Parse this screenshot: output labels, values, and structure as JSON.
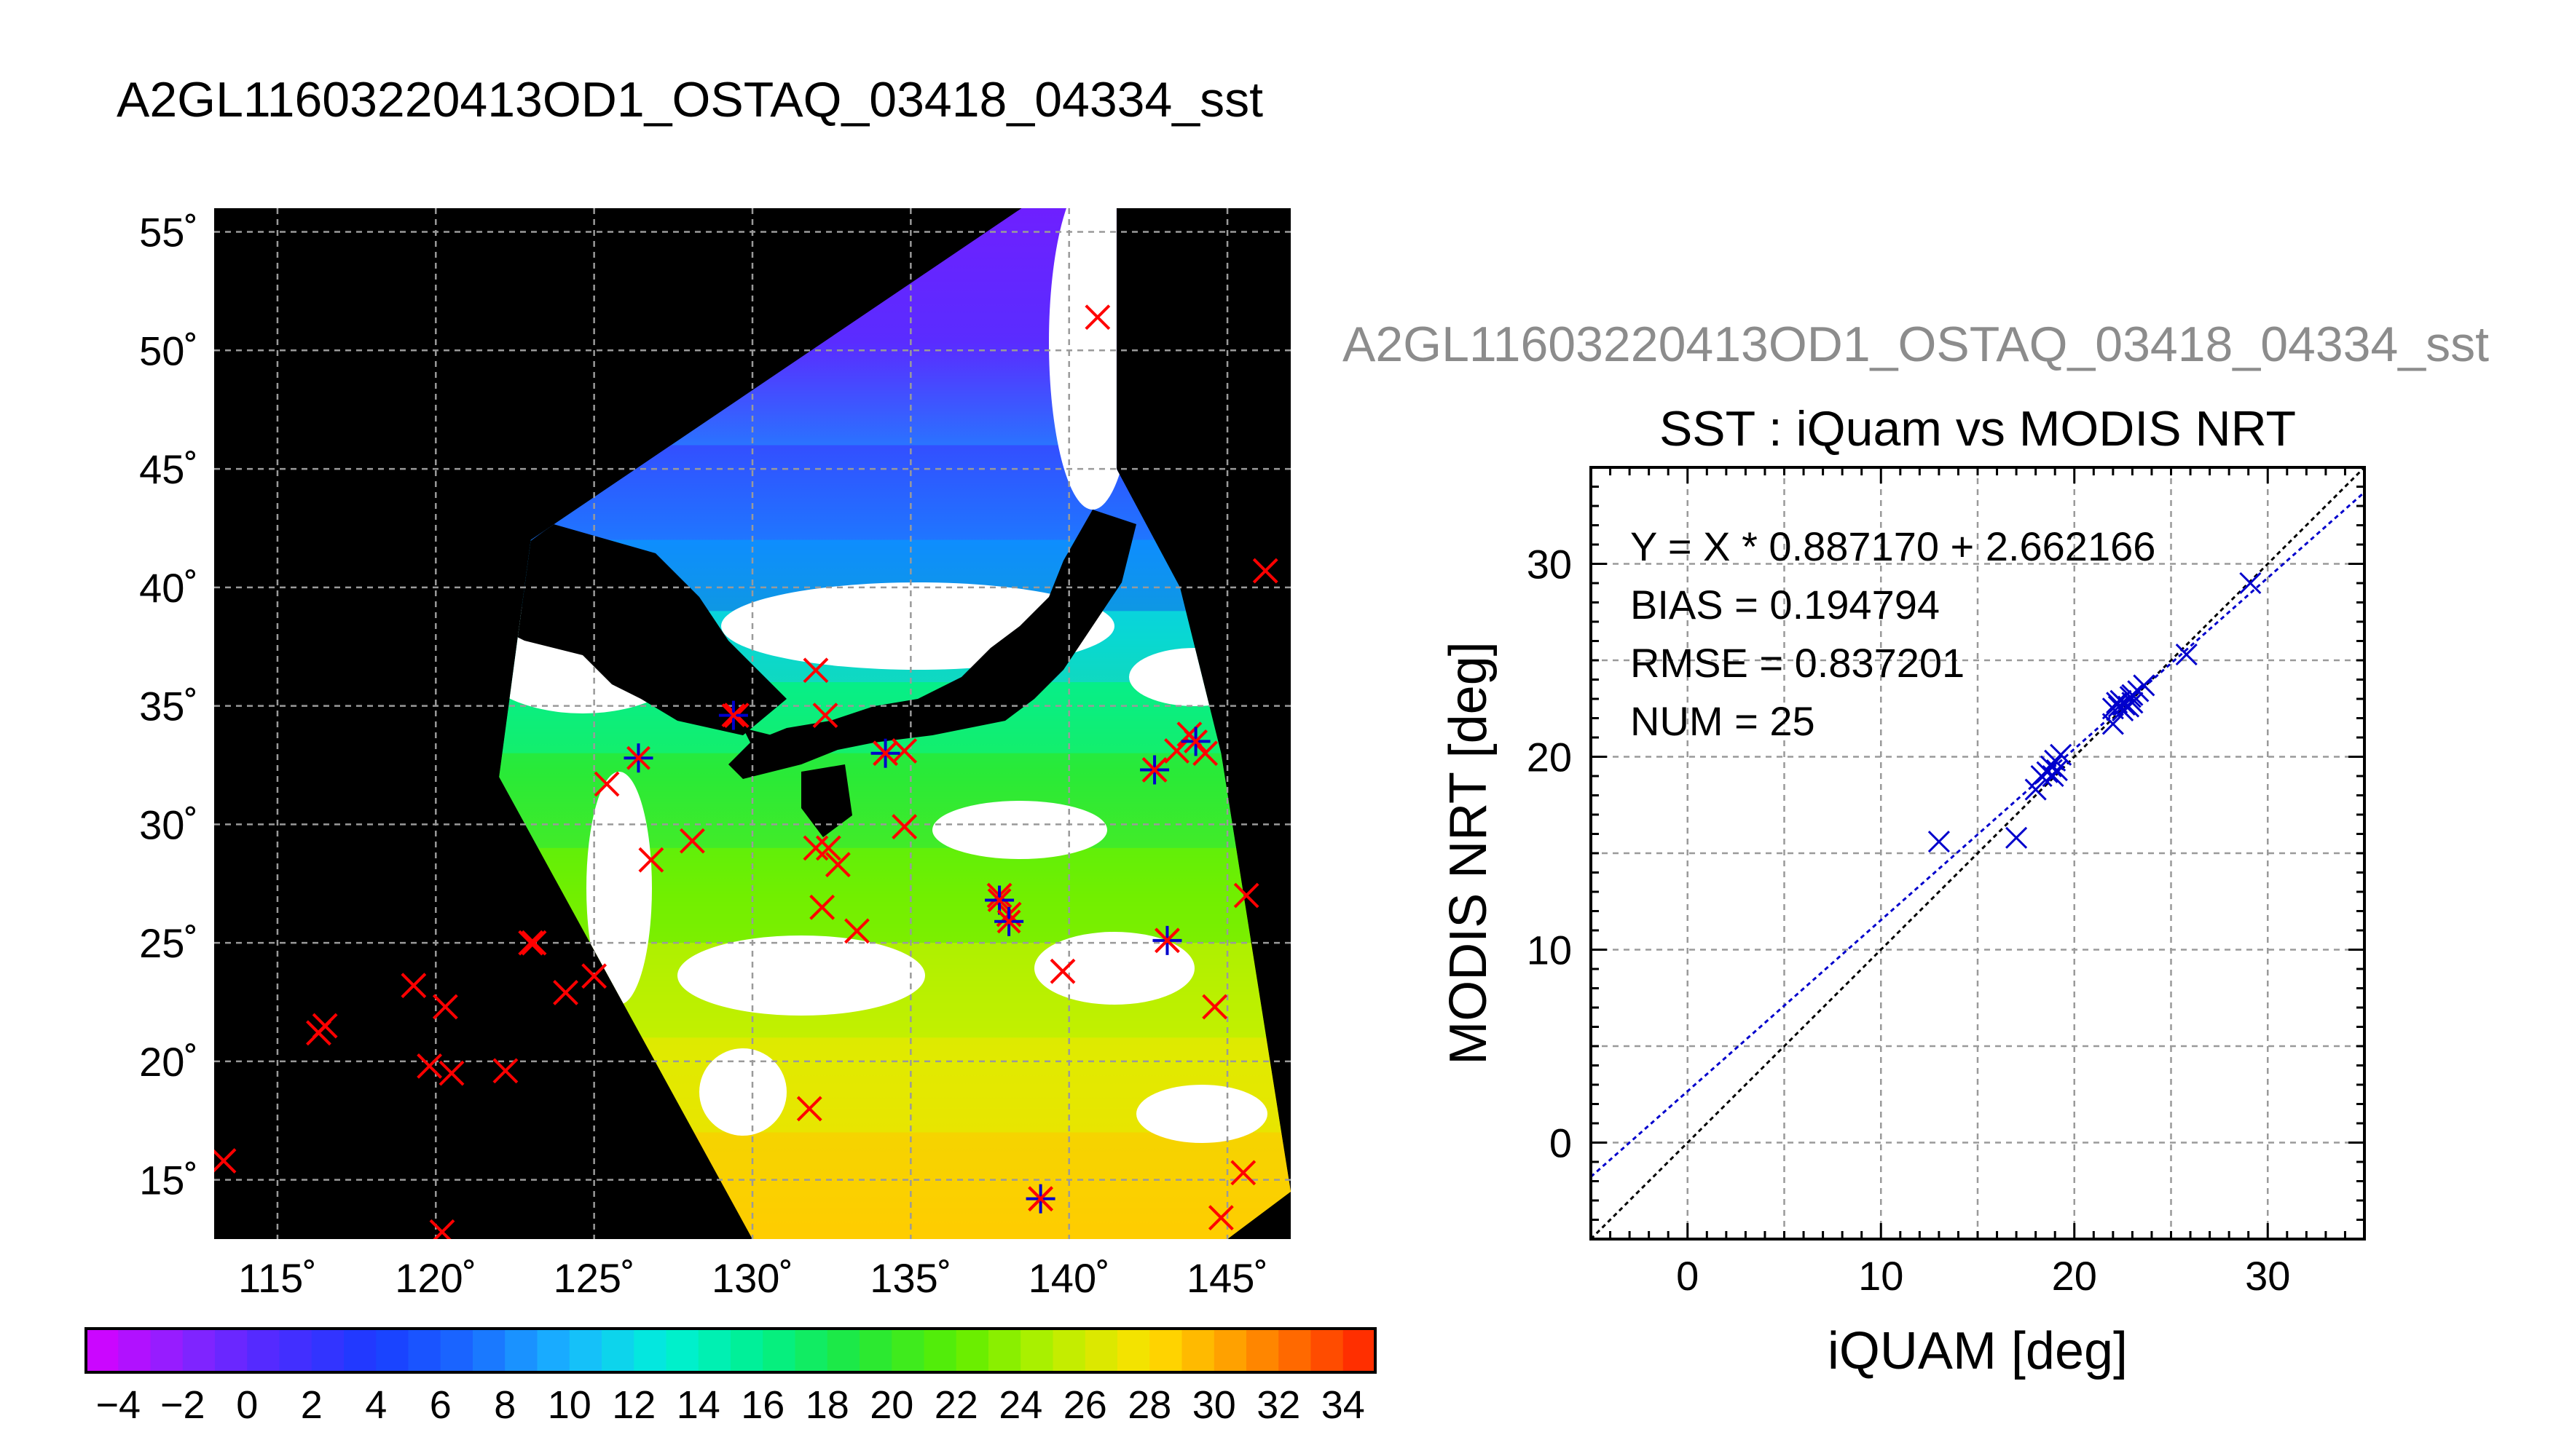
{
  "page_title": "A2GL11603220413OD1_OSTAQ_03418_04334_sst",
  "colors": {
    "match_marker": "#ff0000",
    "valid_marker": "#0000cc",
    "fit_line": "#0000cc",
    "identity_line": "#000000",
    "grid": "#9a9a9a",
    "map_background": "#000000",
    "cloud_fill": "#ffffff",
    "plot_title_gray": "#8c8c8c"
  },
  "chart_data": [
    {
      "type": "heatmap",
      "subtype": "sst-map",
      "title": "A2GL11603220413OD1_OSTAQ_03418_04334_sst",
      "xlabel": "",
      "ylabel": "",
      "xlim": [
        113,
        147
      ],
      "ylim": [
        12.5,
        56
      ],
      "lon_ticks": [
        115,
        120,
        125,
        130,
        135,
        140,
        145
      ],
      "lat_ticks": [
        15,
        20,
        25,
        30,
        35,
        40,
        45,
        50,
        55
      ],
      "lon_labels": [
        "115˚",
        "120˚",
        "125˚",
        "130˚",
        "135˚",
        "140˚",
        "145˚"
      ],
      "lat_labels": [
        "15˚",
        "20˚",
        "25˚",
        "30˚",
        "35˚",
        "40˚",
        "45˚",
        "50˚",
        "55˚"
      ],
      "grid": true,
      "swath_corners": [
        [
          130,
          12.5
        ],
        [
          122,
          32
        ],
        [
          123,
          42
        ],
        [
          138.5,
          56
        ],
        [
          141.5,
          56
        ],
        [
          141.5,
          45
        ],
        [
          143.5,
          40
        ],
        [
          144.8,
          33
        ],
        [
          147,
          14.5
        ],
        [
          145,
          12.5
        ]
      ],
      "sst_bands": [
        {
          "lat_range": [
            42,
            46
          ],
          "sst": 2
        },
        {
          "lat_range": [
            39,
            42
          ],
          "sst": 6
        },
        {
          "lat_range": [
            36,
            39
          ],
          "sst": 11
        },
        {
          "lat_range": [
            33,
            36
          ],
          "sst": 16
        },
        {
          "lat_range": [
            29,
            33
          ],
          "sst": 19
        },
        {
          "lat_range": [
            25,
            29
          ],
          "sst": 22
        },
        {
          "lat_range": [
            21,
            25
          ],
          "sst": 25
        },
        {
          "lat_range": [
            17,
            21
          ],
          "sst": 27
        },
        {
          "lat_range": [
            12.5,
            17
          ],
          "sst": 29
        }
      ],
      "matchup_points_red": [
        [
          113.3,
          15.8
        ],
        [
          116.3,
          21.2
        ],
        [
          116.5,
          21.5
        ],
        [
          119.3,
          23.2
        ],
        [
          119.8,
          19.8
        ],
        [
          120.3,
          22.3
        ],
        [
          120.5,
          19.5
        ],
        [
          120.2,
          12.8
        ],
        [
          122.2,
          19.6
        ],
        [
          123,
          25
        ],
        [
          123.1,
          25
        ],
        [
          124.1,
          22.9
        ],
        [
          125,
          23.6
        ],
        [
          125.4,
          31.7
        ],
        [
          126.8,
          28.5
        ],
        [
          128.1,
          29.3
        ],
        [
          129.5,
          34.6
        ],
        [
          131.8,
          18
        ],
        [
          132,
          36.5
        ],
        [
          132.3,
          34.6
        ],
        [
          132,
          29
        ],
        [
          132.4,
          29
        ],
        [
          132.7,
          28.3
        ],
        [
          132.2,
          26.5
        ],
        [
          133.3,
          25.5
        ],
        [
          134.2,
          33
        ],
        [
          134.8,
          33.1
        ],
        [
          134.8,
          29.9
        ],
        [
          137.8,
          27
        ],
        [
          138.1,
          26.2
        ],
        [
          139.1,
          14.2
        ],
        [
          139.8,
          23.8
        ],
        [
          140.9,
          51.4
        ],
        [
          142.7,
          32.3
        ],
        [
          143.1,
          25.1
        ],
        [
          143.4,
          33.1
        ],
        [
          143.8,
          33.8
        ],
        [
          144.3,
          33
        ],
        [
          144.6,
          22.3
        ],
        [
          144.8,
          13.4
        ],
        [
          145.5,
          15.3
        ],
        [
          145.6,
          27
        ],
        [
          146.2,
          40.7
        ]
      ],
      "matchup_points_valid": [
        [
          126.4,
          32.8
        ],
        [
          129.4,
          34.6
        ],
        [
          134.2,
          33
        ],
        [
          137.8,
          26.8
        ],
        [
          138.1,
          25.9
        ],
        [
          139.1,
          14.2
        ],
        [
          142.7,
          32.3
        ],
        [
          143.1,
          25.1
        ],
        [
          144,
          33.5
        ]
      ]
    },
    {
      "type": "heatmap",
      "subtype": "colorbar",
      "title": "",
      "vmin": -5,
      "vmax": 35,
      "tick_values": [
        -4,
        -2,
        0,
        2,
        4,
        6,
        8,
        10,
        12,
        14,
        16,
        18,
        20,
        22,
        24,
        26,
        28,
        30,
        32,
        34
      ],
      "tick_labels": [
        "−4",
        "−2",
        "0",
        "2",
        "4",
        "6",
        "8",
        "10",
        "12",
        "14",
        "16",
        "18",
        "20",
        "22",
        "24",
        "26",
        "28",
        "30",
        "32",
        "34"
      ]
    },
    {
      "type": "scatter",
      "title": "SST : iQuam vs MODIS NRT",
      "header": "A2GL11603220413OD1_OSTAQ_03418_04334_sst",
      "xlabel": "iQUAM [deg]",
      "ylabel": "MODIS NRT [deg]",
      "xlim": [
        -5,
        35
      ],
      "ylim": [
        -5,
        35
      ],
      "x_ticks": [
        0,
        10,
        20,
        30
      ],
      "y_ticks": [
        0,
        10,
        20,
        30
      ],
      "grid": true,
      "stats": [
        "Y = X * 0.887170 + 2.662166",
        "BIAS = 0.194794",
        "RMSE = 0.837201",
        "NUM = 25"
      ],
      "fit": {
        "slope": 0.88717,
        "intercept": 2.662166
      },
      "series": [
        {
          "marker": "x",
          "x": [
            13,
            17,
            18,
            18.3,
            18.6,
            18.8,
            19,
            19.1,
            19.3,
            22,
            22,
            22.2,
            22.3,
            22.4,
            22.6,
            22.8,
            22.9,
            23,
            23,
            23.3,
            23.6,
            25.8,
            29.1,
            18.9,
            22.5
          ],
          "y": [
            15.6,
            15.8,
            18.3,
            19,
            19.2,
            19.5,
            19.8,
            19.3,
            20.1,
            21.7,
            22.5,
            22.8,
            22.6,
            22.9,
            22.7,
            22.6,
            23.1,
            22.8,
            23.2,
            23.4,
            23.7,
            25.3,
            29,
            19,
            22.4
          ]
        }
      ],
      "identity_line": true
    }
  ]
}
